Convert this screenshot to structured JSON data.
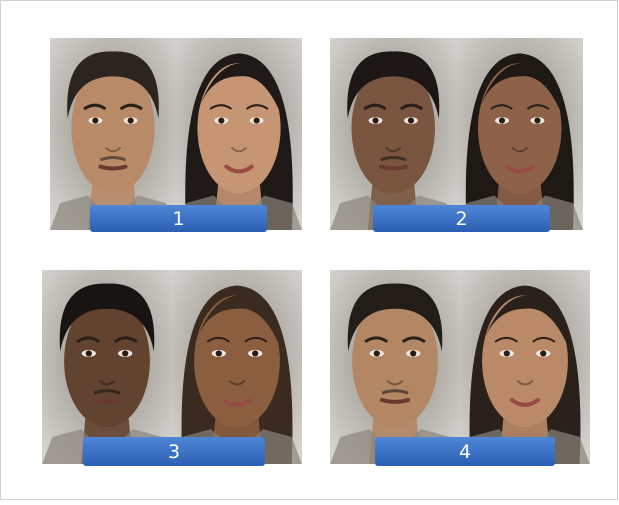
{
  "panels": [
    {
      "label": "1"
    },
    {
      "label": "2"
    },
    {
      "label": "3"
    },
    {
      "label": "4"
    }
  ]
}
